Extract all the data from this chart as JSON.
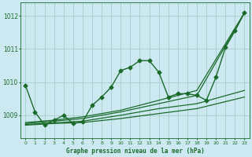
{
  "title": "Graphe pression niveau de la mer (hPa)",
  "background_color": "#cce8f0",
  "grid_color": "#aacccc",
  "line_color": "#1a6b2a",
  "xlim": [
    -0.5,
    23.5
  ],
  "ylim": [
    1008.3,
    1012.4
  ],
  "yticks": [
    1009,
    1010,
    1011,
    1012
  ],
  "xticks": [
    0,
    1,
    2,
    3,
    4,
    5,
    6,
    7,
    8,
    9,
    10,
    11,
    12,
    13,
    14,
    15,
    16,
    17,
    18,
    19,
    20,
    21,
    22,
    23
  ],
  "series": [
    {
      "x": [
        0,
        1,
        2,
        3,
        4,
        5,
        6,
        7,
        8,
        9,
        10,
        11,
        12,
        13,
        14,
        15,
        16,
        17,
        18,
        19,
        20,
        21,
        22,
        23
      ],
      "y": [
        1009.9,
        1009.1,
        1008.7,
        1008.85,
        1009.0,
        1008.75,
        1008.8,
        1009.3,
        1009.55,
        1009.85,
        1010.35,
        1010.45,
        1010.65,
        1010.65,
        1010.3,
        1009.55,
        1009.65,
        1009.65,
        1009.6,
        1009.45,
        1010.15,
        1011.05,
        1011.55,
        1012.1
      ],
      "marker": "D",
      "markersize": 2.5,
      "linewidth": 1.0,
      "zorder": 5
    },
    {
      "x": [
        0,
        3,
        6,
        10,
        14,
        18,
        23
      ],
      "y": [
        1008.7,
        1008.75,
        1008.78,
        1008.9,
        1009.05,
        1009.2,
        1009.55
      ],
      "marker": null,
      "markersize": 0,
      "linewidth": 0.9,
      "zorder": 3
    },
    {
      "x": [
        0,
        3,
        6,
        10,
        14,
        18,
        23
      ],
      "y": [
        1008.72,
        1008.77,
        1008.82,
        1009.0,
        1009.2,
        1009.35,
        1009.75
      ],
      "marker": null,
      "markersize": 0,
      "linewidth": 0.9,
      "zorder": 3
    },
    {
      "x": [
        0,
        3,
        6,
        10,
        14,
        18,
        23
      ],
      "y": [
        1008.75,
        1008.82,
        1008.9,
        1009.1,
        1009.35,
        1009.6,
        1012.1
      ],
      "marker": null,
      "markersize": 0,
      "linewidth": 0.9,
      "zorder": 3
    },
    {
      "x": [
        0,
        3,
        6,
        10,
        14,
        18,
        23
      ],
      "y": [
        1008.78,
        1008.85,
        1008.95,
        1009.15,
        1009.45,
        1009.75,
        1012.1
      ],
      "marker": null,
      "markersize": 0,
      "linewidth": 0.9,
      "zorder": 3
    }
  ]
}
